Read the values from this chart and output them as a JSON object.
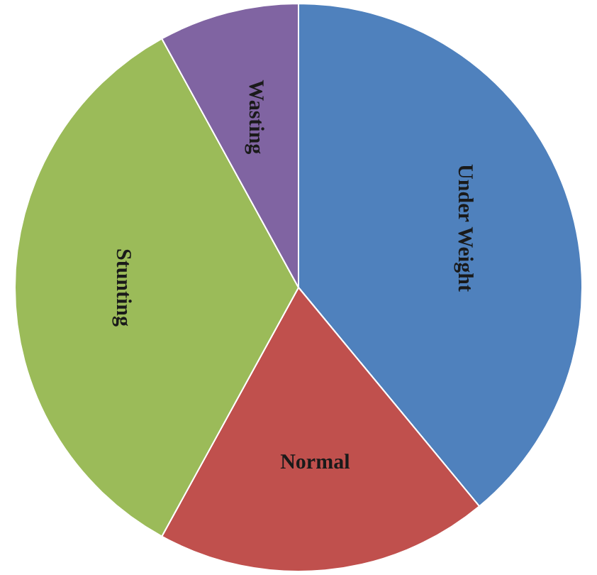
{
  "chart_data": {
    "type": "pie",
    "categories": [
      "Under Weight",
      "Normal",
      "Stunting",
      "Wasting"
    ],
    "values": [
      39,
      19,
      34,
      8
    ],
    "colors": [
      "#4f81bd",
      "#c0504d",
      "#9bbb59",
      "#8064a2"
    ],
    "legend": false
  }
}
